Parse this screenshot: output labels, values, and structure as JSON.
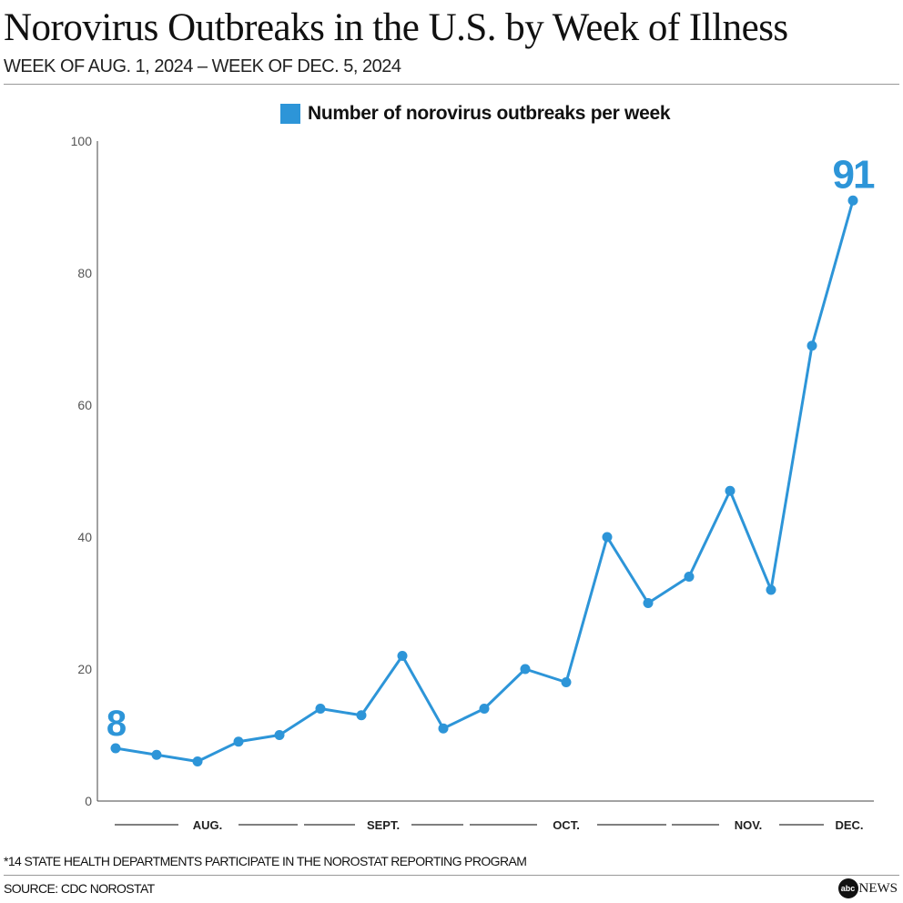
{
  "chart_data": {
    "type": "line",
    "title": "Norovirus Outbreaks in the U.S. by Week of Illness",
    "subtitle": "WEEK OF AUG. 1, 2024 – WEEK OF DEC. 5, 2024",
    "series": [
      {
        "name": "Number of norovirus outbreaks per week",
        "color": "#2d95d8",
        "values": [
          8,
          7,
          6,
          9,
          10,
          14,
          13,
          22,
          11,
          14,
          20,
          18,
          40,
          30,
          34,
          47,
          32,
          69,
          91
        ]
      }
    ],
    "annotations": [
      {
        "index": 0,
        "label": "8"
      },
      {
        "index": 18,
        "label": "91"
      }
    ],
    "ylim": [
      0,
      100
    ],
    "yticks": [
      0,
      20,
      40,
      60,
      80,
      100
    ],
    "month_labels": [
      "AUG.",
      "SEPT.",
      "OCT.",
      "NOV.",
      "DEC."
    ],
    "legend": "top-center",
    "grid": false
  },
  "footnote": "*14 STATE HEALTH DEPARTMENTS PARTICIPATE IN THE NOROSTAT REPORTING PROGRAM",
  "source": "SOURCE: CDC NOROSTAT",
  "logo": {
    "mark": "abc",
    "text": "NEWS"
  }
}
